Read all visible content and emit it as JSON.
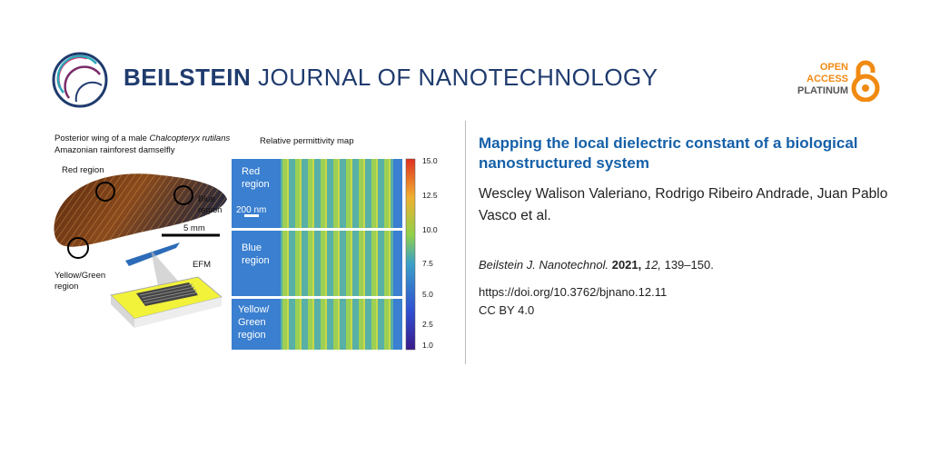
{
  "header": {
    "journal_name_bold": "BEILSTEIN",
    "journal_name_rest": " JOURNAL OF NANOTECHNOLOGY",
    "oa_line1": "OPEN",
    "oa_line2": "ACCESS",
    "oa_line3": "PLATINUM"
  },
  "figure": {
    "wing_caption_pre": "Posterior wing of a male ",
    "wing_caption_species": "Chalcopteryx rutilans",
    "wing_caption_post": " Amazonian rainforest damselfly",
    "label_red": "Red region",
    "label_blue": "Blue region",
    "label_yellow": "Yellow/Green region",
    "scalebar": "5 mm",
    "efm": "EFM",
    "map_title": "Relative permittivity map",
    "panel_red": "Red region",
    "panel_blue": "Blue region",
    "panel_yellow": "Yellow/ Green region",
    "map_scalebar": "200 nm",
    "colorbar_ticks": [
      "15.0",
      "12.5",
      "10.0",
      "7.5",
      "5.0",
      "2.5",
      "1.0"
    ]
  },
  "article": {
    "title": "Mapping the local dielectric constant of a biological nanostructured system",
    "authors": "Wescley Walison Valeriano, Rodrigo Ribeiro Andrade, Juan Pablo Vasco et al.",
    "citation_journal": "Beilstein J. Nanotechnol.",
    "citation_year": "2021,",
    "citation_volume": "12,",
    "citation_pages": "139–150.",
    "doi": "https://doi.org/10.3762/bjnano.12.11",
    "license": "CC BY 4.0"
  },
  "colors": {
    "journal_blue": "#1f3b6e",
    "title_blue": "#1560a8",
    "oa_orange": "#f08a12"
  }
}
